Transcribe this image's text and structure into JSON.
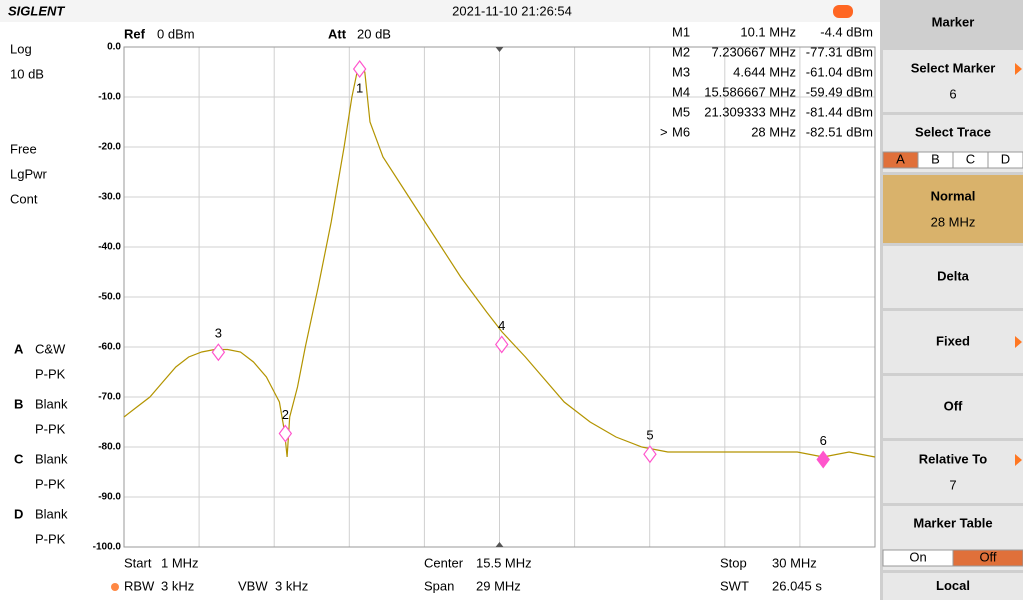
{
  "header": {
    "brand": "SIGLENT",
    "datetime": "2021-11-10 21:26:54"
  },
  "left_panel": [
    "Log",
    "10 dB",
    "Free",
    "LgPwr",
    "Cont"
  ],
  "traces": [
    {
      "id": "A",
      "mode": "C&W",
      "detector": "P-PK"
    },
    {
      "id": "B",
      "mode": "Blank",
      "detector": "P-PK"
    },
    {
      "id": "C",
      "mode": "Blank",
      "detector": "P-PK"
    },
    {
      "id": "D",
      "mode": "Blank",
      "detector": "P-PK"
    }
  ],
  "settings": {
    "ref_label": "Ref",
    "ref": "0 dBm",
    "att_label": "Att",
    "att": "20 dB"
  },
  "marker_table": {
    "pointer": ">",
    "rows": [
      [
        "M1",
        "10.1 MHz",
        "-4.4 dBm"
      ],
      [
        "M2",
        "7.230667 MHz",
        "-77.31 dBm"
      ],
      [
        "M3",
        "4.644 MHz",
        "-61.04 dBm"
      ],
      [
        "M4",
        "15.586667 MHz",
        "-59.49 dBm"
      ],
      [
        "M5",
        "21.309333 MHz",
        "-81.44 dBm"
      ],
      [
        "M6",
        "28 MHz",
        "-82.51 dBm"
      ]
    ]
  },
  "bottom": [
    [
      "Start",
      "1 MHz"
    ],
    [
      "Center",
      "15.5 MHz"
    ],
    [
      "Stop",
      "30 MHz"
    ],
    [
      "RBW",
      "3 kHz"
    ],
    [
      "VBW",
      "3 kHz"
    ],
    [
      "Span",
      "29 MHz"
    ],
    [
      "SWT",
      "26.045 s"
    ]
  ],
  "menu": {
    "title": "Marker",
    "items": [
      {
        "label": "Select Marker",
        "value": "6",
        "arrow": true
      },
      {
        "label": "Select Trace",
        "options": [
          "A",
          "B",
          "C",
          "D"
        ]
      },
      {
        "label": "Normal",
        "value": "28 MHz"
      },
      {
        "label": "Delta"
      },
      {
        "label": "Fixed",
        "arrow": true
      },
      {
        "label": "Off"
      },
      {
        "label": "Relative To",
        "value": "7",
        "arrow": true
      },
      {
        "label": "Marker Table",
        "options": [
          "On",
          "Off"
        ]
      },
      {
        "label": "Local"
      }
    ]
  },
  "chart_data": {
    "type": "line",
    "x": [
      1,
      1.5,
      2,
      2.5,
      3,
      3.5,
      4,
      4.5,
      5,
      5.5,
      6,
      6.5,
      6.8,
      7,
      7.2,
      7.3,
      7.4,
      7.7,
      8,
      8.5,
      9,
      9.5,
      9.8,
      10,
      10.1,
      10.3,
      10.5,
      11,
      12,
      13,
      14,
      15,
      15.6,
      16.5,
      17,
      18,
      19,
      20,
      21,
      22,
      23,
      24,
      25,
      26,
      27,
      28,
      29,
      30
    ],
    "color": "#b39400",
    "values": [
      -74,
      -72,
      -70,
      -67,
      -64,
      -62,
      -61,
      -60.5,
      -60.5,
      -61,
      -63,
      -66,
      -69,
      -71,
      -77,
      -82,
      -74,
      -68,
      -60,
      -48,
      -35,
      -20,
      -10,
      -5,
      -4.4,
      -5,
      -15,
      -22,
      -30,
      -38,
      -46,
      -53,
      -57,
      -62,
      -65,
      -71,
      -75,
      -78,
      -80,
      -81,
      -81,
      -81,
      -81,
      -81,
      -81,
      -82,
      -81,
      -82
    ],
    "xlim": [
      1,
      30
    ],
    "xticks": [
      1,
      3.9,
      6.8,
      9.7,
      12.6,
      15.5,
      18.4,
      21.3,
      24.2,
      27.1,
      30
    ],
    "ylim": [
      -100,
      0
    ],
    "yticks": [
      {
        "value": 0,
        "label": "0.0"
      },
      {
        "value": -10,
        "label": "-10.0"
      },
      {
        "value": -20,
        "label": "-20.0"
      },
      {
        "value": -30,
        "label": "-30.0"
      },
      {
        "value": -40,
        "label": "-40.0"
      },
      {
        "value": -50,
        "label": "-50.0"
      },
      {
        "value": -60,
        "label": "-60.0"
      },
      {
        "value": -70,
        "label": "-70.0"
      },
      {
        "value": -80,
        "label": "-80.0"
      },
      {
        "value": -90,
        "label": "-90.0"
      },
      {
        "value": -100,
        "label": "-100.0"
      }
    ],
    "grid": true,
    "markers": {
      "labels": [
        "1",
        "2",
        "3",
        "4",
        "5",
        "6"
      ],
      "x": [
        10.1,
        7.230667,
        4.644,
        15.586667,
        21.309333,
        28
      ],
      "values": [
        -4.4,
        -77.31,
        -61.04,
        -59.49,
        -81.44,
        -82.51
      ],
      "color": "#ff55cc",
      "active": 5
    }
  }
}
